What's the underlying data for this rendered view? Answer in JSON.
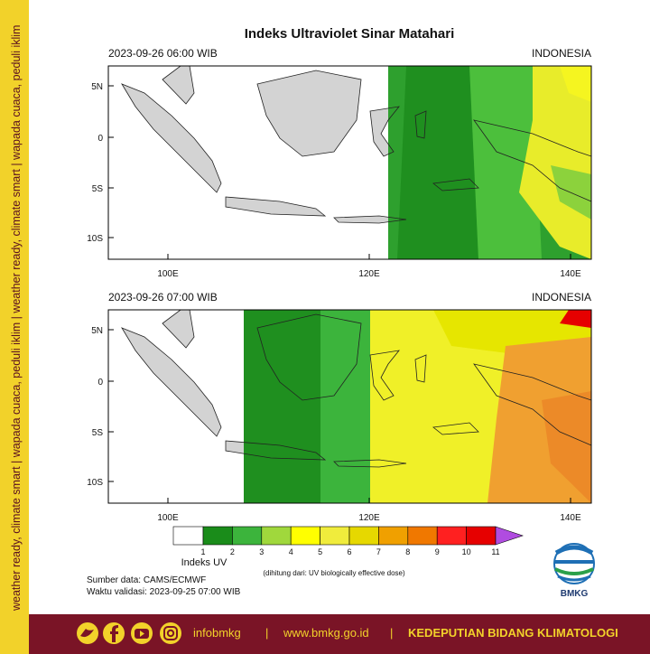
{
  "title": "Indeks Ultraviolet Sinar Matahari",
  "panels": [
    {
      "datetime": "2023-09-26  06:00 WIB",
      "region": "INDONESIA"
    },
    {
      "datetime": "2023-09-26  07:00 WIB",
      "region": "INDONESIA"
    }
  ],
  "lat_ticks": [
    "5N",
    "0",
    "5S",
    "10S"
  ],
  "lon_ticks": [
    "100E",
    "120E",
    "140E"
  ],
  "legend": {
    "title": "Indeks UV",
    "note": "(dihitung dari: UV biologically effective dose)",
    "ticks": [
      1,
      2,
      3,
      4,
      5,
      6,
      7,
      8,
      9,
      10,
      11
    ]
  },
  "source": "Sumber data: CAMS/ECMWF",
  "valid": "Waktu validasi: 2023-09-25 07:00 WIB",
  "logo": "BMKG",
  "sidebar": "weather ready, climate smart  |  wapada cuaca, peduli iklim  |  weather ready, climate smart  |  wapada cuaca, peduli iklim",
  "footer": {
    "handle": "infobmkg",
    "separator": "|",
    "website": "www.bmkg.go.id",
    "department": "KEDEPUTIAN BIDANG KLIMATOLOGI"
  }
}
